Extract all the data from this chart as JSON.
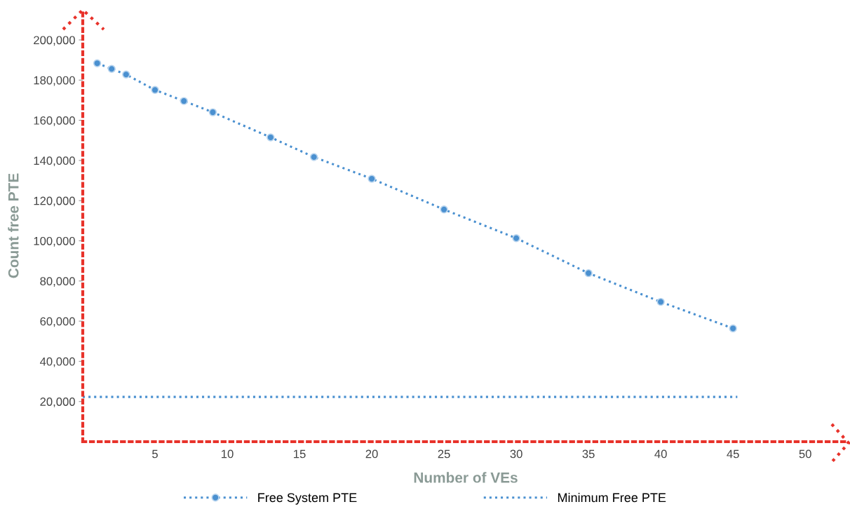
{
  "chart_data": {
    "type": "line",
    "xlabel": "Number of VEs",
    "ylabel": "Count free PTE",
    "xlim": [
      0,
      53
    ],
    "xticks": [
      5,
      10,
      15,
      20,
      25,
      30,
      35,
      40,
      45,
      50
    ],
    "ylim": [
      0,
      215000
    ],
    "yticks": [
      {
        "value": 20000,
        "label": "20,000"
      },
      {
        "value": 40000,
        "label": "40,000"
      },
      {
        "value": 60000,
        "label": "60,000"
      },
      {
        "value": 80000,
        "label": "80,000"
      },
      {
        "value": 100000,
        "label": "100,000"
      },
      {
        "value": 120000,
        "label": "120,000"
      },
      {
        "value": 140000,
        "label": "140,000"
      },
      {
        "value": 160000,
        "label": "160,000"
      },
      {
        "value": 180000,
        "label": "180,000"
      },
      {
        "value": 200000,
        "label": "200,000"
      }
    ],
    "grid": false,
    "legend": "bottom",
    "line_style": "dotted",
    "series": [
      {
        "name": "Free System PTE",
        "color": "#4a90d0",
        "marker": "circle",
        "x": [
          1,
          2,
          3,
          5,
          7,
          9,
          13,
          16,
          20,
          25,
          30,
          35,
          40,
          45
        ],
        "values": [
          188400,
          185600,
          182800,
          175100,
          169600,
          164000,
          151500,
          141700,
          130900,
          115600,
          101300,
          83900,
          69600,
          56400
        ]
      },
      {
        "name": "Minimum Free PTE",
        "color": "#4a90d0",
        "marker": "none",
        "x": [
          0,
          45.3
        ],
        "values": [
          22300,
          22300
        ]
      }
    ]
  }
}
